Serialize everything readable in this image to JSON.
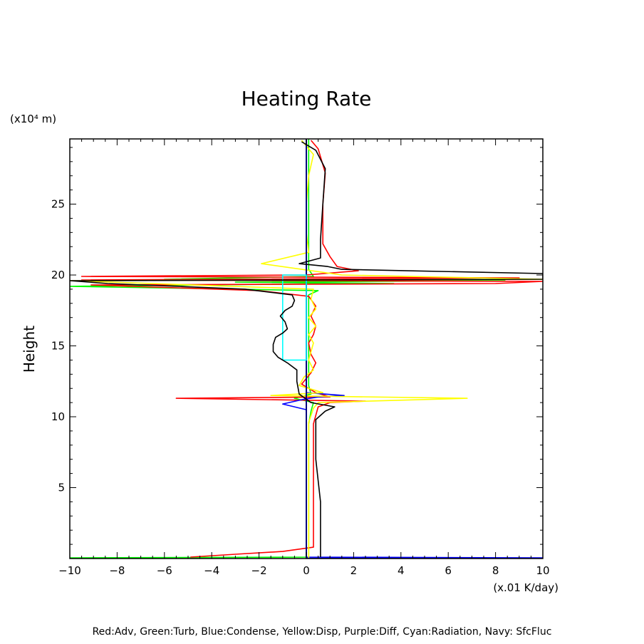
{
  "chart_data": {
    "type": "line",
    "title": "Heating Rate",
    "ylabel": "Height",
    "yunit": "(x10⁴ m)",
    "xunit": "(x.01 K/day)",
    "xlim": [
      -10,
      10
    ],
    "ylim": [
      0,
      29.6
    ],
    "xticks": [
      -10,
      -8,
      -6,
      -4,
      -2,
      0,
      2,
      4,
      6,
      8,
      10
    ],
    "xtick_labels": [
      "−10",
      "−8",
      "−6",
      "−4",
      "−2",
      "0",
      "2",
      "4",
      "6",
      "8",
      "10"
    ],
    "yticks": [
      5,
      10,
      15,
      20,
      25
    ],
    "yticks_labels": [
      "5",
      "10",
      "15",
      "20",
      "25"
    ],
    "grid": false,
    "caption": "Red:Adv, Green:Turb, Blue:Condense, Yellow:Disp, Purple:Diff, Cyan:Radiation, Navy: SfcFluc",
    "series": [
      {
        "key": "turb",
        "color": "#00ff00",
        "points": [
          [
            -10,
            0.05
          ],
          [
            0.1,
            0.1
          ],
          [
            0.1,
            0.7
          ],
          [
            0.1,
            9.5
          ],
          [
            0.2,
            10.4
          ],
          [
            0.3,
            11.0
          ],
          [
            -0.5,
            11.3
          ],
          [
            0.2,
            11.6
          ],
          [
            0.1,
            12.2
          ],
          [
            0.1,
            18.6
          ],
          [
            0.5,
            18.9
          ],
          [
            -10,
            19.2
          ],
          [
            1.6,
            19.4
          ],
          [
            3.7,
            19.4
          ],
          [
            -3,
            19.5
          ],
          [
            8.4,
            19.6
          ],
          [
            -6,
            19.7
          ],
          [
            0.3,
            19.9
          ],
          [
            0.1,
            20.4
          ],
          [
            0.1,
            29.6
          ]
        ]
      },
      {
        "key": "adv",
        "color": "#ff0000",
        "points": [
          [
            -4.9,
            0.1
          ],
          [
            -3,
            0.3
          ],
          [
            -1,
            0.5
          ],
          [
            0.3,
            0.8
          ],
          [
            0.3,
            1.5
          ],
          [
            0.3,
            9.5
          ],
          [
            0.5,
            10.7
          ],
          [
            1.0,
            11.0
          ],
          [
            2.5,
            11.1
          ],
          [
            -5.5,
            11.3
          ],
          [
            1.0,
            11.4
          ],
          [
            0.4,
            11.7
          ],
          [
            -0.2,
            12.3
          ],
          [
            0.2,
            13.1
          ],
          [
            0.4,
            13.8
          ],
          [
            0.2,
            14.4
          ],
          [
            0.1,
            15.2
          ],
          [
            0.3,
            15.8
          ],
          [
            0.4,
            16.4
          ],
          [
            0.2,
            17.1
          ],
          [
            0.4,
            17.8
          ],
          [
            0.1,
            18.5
          ],
          [
            -2,
            18.9
          ],
          [
            -9.1,
            19.3
          ],
          [
            8,
            19.4
          ],
          [
            10,
            19.55
          ],
          [
            -9.5,
            19.65
          ],
          [
            9,
            19.8
          ],
          [
            -9.5,
            19.9
          ],
          [
            0,
            20.0
          ],
          [
            2.2,
            20.3
          ],
          [
            1.3,
            20.6
          ],
          [
            1.0,
            21.3
          ],
          [
            0.7,
            22.2
          ],
          [
            0.7,
            25.0
          ],
          [
            0.8,
            27.2
          ],
          [
            0.5,
            28.9
          ],
          [
            0.2,
            29.5
          ]
        ]
      },
      {
        "key": "condense",
        "color": "#0000ff",
        "points": [
          [
            0,
            0.05
          ],
          [
            6,
            0.05
          ],
          [
            10,
            0.05
          ],
          [
            0,
            0.1
          ],
          [
            0,
            10.5
          ],
          [
            -1.0,
            10.9
          ],
          [
            -0.2,
            11.2
          ],
          [
            0.5,
            11.4
          ],
          [
            1.6,
            11.5
          ],
          [
            0,
            11.7
          ],
          [
            0,
            29.6
          ]
        ]
      },
      {
        "key": "disp",
        "color": "#ffff00",
        "points": [
          [
            0.1,
            0.05
          ],
          [
            0.1,
            9.6
          ],
          [
            0.3,
            10.6
          ],
          [
            0.5,
            11.0
          ],
          [
            6.8,
            11.3
          ],
          [
            -1.5,
            11.5
          ],
          [
            0.7,
            11.7
          ],
          [
            -0.3,
            12.2
          ],
          [
            -0.1,
            12.8
          ],
          [
            0.3,
            13.3
          ],
          [
            0.1,
            14.0
          ],
          [
            0.2,
            14.6
          ],
          [
            0.3,
            15.2
          ],
          [
            0.1,
            15.8
          ],
          [
            0.4,
            16.4
          ],
          [
            0.1,
            17.0
          ],
          [
            0.4,
            17.6
          ],
          [
            0.2,
            18.3
          ],
          [
            0.3,
            19.0
          ],
          [
            -10,
            19.6
          ],
          [
            10,
            19.7
          ],
          [
            1.5,
            20.0
          ],
          [
            -1.9,
            20.8
          ],
          [
            0.1,
            21.6
          ],
          [
            0.0,
            23.0
          ],
          [
            0.0,
            25.0
          ],
          [
            0.1,
            27.0
          ],
          [
            0.3,
            28.5
          ],
          [
            -0.2,
            29.5
          ]
        ]
      },
      {
        "key": "sfcfluc",
        "color": "#000080",
        "points": [
          [
            0,
            0.0
          ],
          [
            0,
            29.6
          ]
        ]
      },
      {
        "key": "radiation",
        "color": "#00ffff",
        "points": [
          [
            -1.0,
            14.0
          ],
          [
            -1.0,
            20.0
          ],
          [
            0,
            20.0
          ],
          [
            0,
            14.0
          ],
          [
            -1.0,
            14.0
          ]
        ]
      },
      {
        "key": "total",
        "color": "#000000",
        "points": [
          [
            0.6,
            0.1
          ],
          [
            0.6,
            0.8
          ],
          [
            0.6,
            4.0
          ],
          [
            0.5,
            5.5
          ],
          [
            0.4,
            7.0
          ],
          [
            0.4,
            9.8
          ],
          [
            0.8,
            10.4
          ],
          [
            1.2,
            10.7
          ],
          [
            0.2,
            11.0
          ],
          [
            -0.3,
            11.6
          ],
          [
            -0.4,
            12.5
          ],
          [
            -0.4,
            13.3
          ],
          [
            -0.8,
            13.8
          ],
          [
            -1.2,
            14.2
          ],
          [
            -1.4,
            14.6
          ],
          [
            -1.4,
            15.1
          ],
          [
            -1.3,
            15.6
          ],
          [
            -1.0,
            15.9
          ],
          [
            -0.8,
            16.2
          ],
          [
            -0.9,
            16.7
          ],
          [
            -1.1,
            17.1
          ],
          [
            -0.9,
            17.5
          ],
          [
            -0.6,
            17.8
          ],
          [
            -0.5,
            18.2
          ],
          [
            -0.6,
            18.6
          ],
          [
            -2.6,
            19.0
          ],
          [
            -8.4,
            19.4
          ],
          [
            -10,
            19.6
          ],
          [
            10,
            19.7
          ],
          [
            10,
            20.1
          ],
          [
            1.5,
            20.4
          ],
          [
            0.9,
            20.6
          ],
          [
            -0.3,
            20.8
          ],
          [
            0.6,
            21.2
          ],
          [
            0.6,
            22.5
          ],
          [
            0.7,
            25.0
          ],
          [
            0.8,
            27.5
          ],
          [
            0.4,
            28.8
          ],
          [
            -0.2,
            29.4
          ]
        ]
      }
    ]
  }
}
